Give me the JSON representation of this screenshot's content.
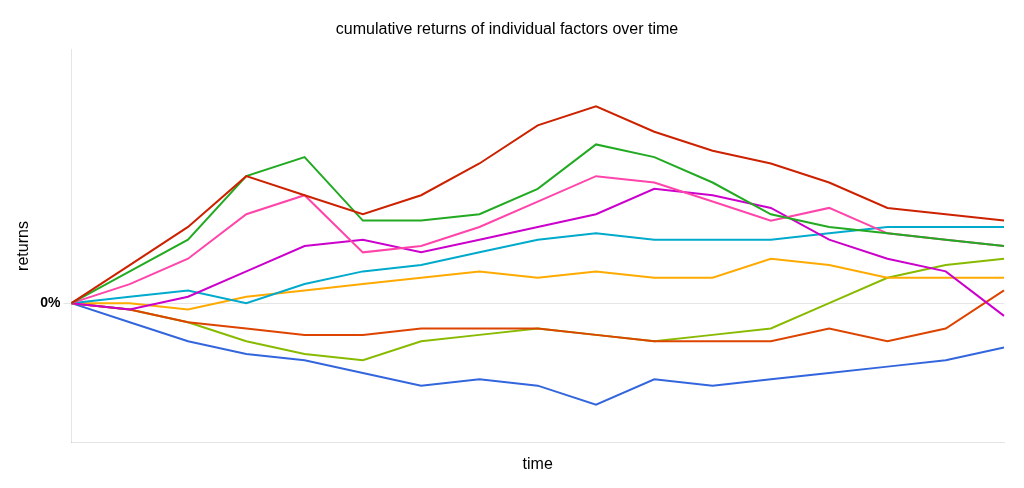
{
  "chart_data": {
    "type": "line",
    "title": "cumulative returns of individual factors over time",
    "x_label": "time",
    "y_label": "returns",
    "categories": [
      null,
      null,
      null,
      null,
      null,
      null,
      null,
      null,
      null,
      null,
      null,
      null,
      null,
      null,
      null,
      null,
      null
    ],
    "series": [
      {
        "color": "#cc2200",
        "values": [
          0,
          0.06,
          0.12,
          0.2,
          0.17,
          0.14,
          0.17,
          0.22,
          0.28,
          0.31,
          0.27,
          0.24,
          0.22,
          0.19,
          0.15,
          0.14,
          0.13
        ]
      },
      {
        "color": "#22aa22",
        "values": [
          0,
          0.05,
          0.1,
          0.2,
          0.23,
          0.13,
          0.13,
          0.14,
          0.18,
          0.25,
          0.23,
          0.19,
          0.14,
          0.12,
          0.11,
          0.1,
          0.09
        ]
      },
      {
        "color": "#ff44aa",
        "values": [
          0,
          0.03,
          0.07,
          0.14,
          0.17,
          0.08,
          0.09,
          0.12,
          0.16,
          0.2,
          0.19,
          0.16,
          0.13,
          0.15,
          0.11,
          0.1,
          0.09
        ]
      },
      {
        "color": "#cc00cc",
        "values": [
          0,
          -0.01,
          0.01,
          0.05,
          0.09,
          0.1,
          0.08,
          0.1,
          0.12,
          0.14,
          0.18,
          0.17,
          0.15,
          0.1,
          0.07,
          0.05,
          -0.02
        ]
      },
      {
        "color": "#00aacc",
        "values": [
          0,
          0.01,
          0.02,
          0.0,
          0.03,
          0.05,
          0.06,
          0.08,
          0.1,
          0.11,
          0.1,
          0.1,
          0.1,
          0.11,
          0.12,
          0.12,
          0.12
        ]
      },
      {
        "color": "#ffaa00",
        "values": [
          0,
          0.0,
          -0.01,
          0.01,
          0.02,
          0.03,
          0.04,
          0.05,
          0.04,
          0.05,
          0.04,
          0.04,
          0.07,
          0.06,
          0.04,
          0.04,
          0.04
        ]
      },
      {
        "color": "#dd4400",
        "values": [
          0,
          -0.01,
          -0.03,
          -0.04,
          -0.05,
          -0.05,
          -0.04,
          -0.04,
          -0.04,
          -0.05,
          -0.06,
          -0.06,
          -0.06,
          -0.04,
          -0.06,
          -0.04,
          0.02
        ]
      },
      {
        "color": "#88bb00",
        "values": [
          0,
          -0.01,
          -0.03,
          -0.06,
          -0.08,
          -0.09,
          -0.06,
          -0.05,
          -0.04,
          -0.05,
          -0.06,
          -0.05,
          -0.04,
          0.0,
          0.04,
          0.06,
          0.07
        ]
      },
      {
        "color": "#3366dd",
        "values": [
          0,
          -0.03,
          -0.06,
          -0.08,
          -0.09,
          -0.11,
          -0.13,
          -0.12,
          -0.13,
          -0.16,
          -0.12,
          -0.13,
          -0.12,
          -0.11,
          -0.1,
          -0.09,
          -0.07
        ]
      }
    ],
    "ylim": [
      -0.22,
      0.4
    ],
    "yticks": [
      {
        "value": 0,
        "label": "0%"
      }
    ],
    "grid": true,
    "tick_labels": "y"
  }
}
